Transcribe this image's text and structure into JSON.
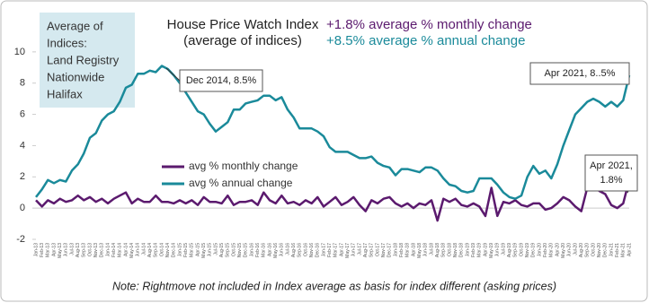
{
  "chart_data": {
    "type": "line",
    "title": "House Price Watch Index",
    "subtitle": "(average of indices)",
    "headlines": [
      {
        "text": "+1.8% average % monthly change",
        "color": "#5b1a6e"
      },
      {
        "text": "+8.5% average % annual change",
        "color": "#1a8a9a"
      }
    ],
    "info_box": [
      "Average of",
      "Indices:",
      "Land Registry",
      "Nationwide",
      "Halifax"
    ],
    "annotations": [
      [
        "Dec 2014, 8.5%"
      ],
      [
        "Apr 2021, 8..5%"
      ],
      [
        "Apr 2021,",
        "1.8%"
      ]
    ],
    "note": "Note: Rightmove not included in Index average as basis for index different (asking prices)",
    "categories": [
      "Jan-13",
      "Feb-13",
      "Mar-13",
      "Apr-13",
      "May-13",
      "Jun-13",
      "Jul-13",
      "Aug-13",
      "Sep-13",
      "Oct-13",
      "Nov-13",
      "Dec-13",
      "Jan-14",
      "Feb-14",
      "Mar-14",
      "Apr-14",
      "May-14",
      "Jun-14",
      "Jul-14",
      "Aug-14",
      "Sep-14",
      "Oct-14",
      "Nov-14",
      "Dec-14",
      "Jan-15",
      "Feb-15",
      "Mar-15",
      "Apr-15",
      "May-15",
      "Jun-15",
      "Jul-15",
      "Aug-15",
      "Sep-15",
      "Oct-15",
      "Nov-15",
      "Dec-15",
      "Jan-16",
      "Feb-16",
      "Mar-16",
      "Apr-16",
      "May-16",
      "Jun-16",
      "Jul-16",
      "Aug-16",
      "Sep-16",
      "Oct-16",
      "Nov-16",
      "Dec-16",
      "Jan-17",
      "Feb-17",
      "Mar-17",
      "Apr-17",
      "May-17",
      "Jun-17",
      "Jul-17",
      "Aug-17",
      "Sep-17",
      "Oct-17",
      "Nov-17",
      "Dec-17",
      "Jan-18",
      "Feb-18",
      "Mar-18",
      "Apr-18",
      "May-18",
      "Jun-18",
      "Jul-18",
      "Aug-18",
      "Sep-18",
      "Oct-18",
      "Nov-18",
      "Dec-18",
      "Jan-19",
      "Feb-19",
      "Mar-19",
      "Apr-19",
      "May-19",
      "Jun-19",
      "Jul-19",
      "Aug-19",
      "Sep-19",
      "Oct-19",
      "Nov-19",
      "Dec-19",
      "Jan-20",
      "Feb-20",
      "Mar-20",
      "Apr-20",
      "May-20",
      "Jun-20",
      "Jul-20",
      "Aug-20",
      "Sep-20",
      "Oct-20",
      "Nov-20",
      "Dec-20",
      "Jan-21",
      "Feb-21",
      "Mar-21",
      "Apr-21"
    ],
    "series": [
      {
        "name": "avg % monthly change",
        "color": "#5b1a6e",
        "values": [
          0.5,
          0.1,
          0.5,
          0.3,
          0.6,
          0.4,
          0.5,
          0.8,
          0.5,
          0.7,
          0.4,
          0.6,
          0.3,
          0.6,
          0.8,
          1.0,
          0.3,
          0.6,
          0.4,
          0.4,
          0.8,
          0.4,
          0.4,
          0.3,
          0.5,
          0.3,
          0.5,
          0.2,
          0.7,
          0.4,
          0.4,
          0.3,
          0.8,
          0.2,
          0.4,
          0.4,
          0.5,
          0.2,
          1.0,
          0.5,
          0.3,
          0.8,
          0.3,
          0.4,
          0.2,
          0.5,
          0.3,
          0.7,
          0.1,
          0.4,
          0.7,
          0.2,
          0.4,
          0.7,
          0.2,
          -0.2,
          0.5,
          0.3,
          0.6,
          0.7,
          0.3,
          0.1,
          0.3,
          0.0,
          0.3,
          0.2,
          0.5,
          -0.8,
          0.6,
          0.4,
          0.6,
          0.2,
          0.1,
          0.3,
          0.1,
          -0.5,
          1.3,
          -0.5,
          0.4,
          0.3,
          0.5,
          0.2,
          0.1,
          0.3,
          0.3,
          -0.1,
          0.0,
          0.3,
          0.7,
          0.5,
          0.1,
          -0.2,
          1.3,
          1.5,
          1.1,
          0.9,
          0.2,
          0.0,
          0.3,
          1.8
        ]
      },
      {
        "name": "avg % annual change",
        "color": "#1a8a9a",
        "values": [
          0.7,
          1.2,
          1.8,
          1.6,
          1.8,
          1.7,
          2.4,
          2.8,
          3.5,
          4.5,
          4.8,
          5.6,
          6.0,
          6.2,
          6.8,
          7.7,
          7.9,
          8.6,
          8.6,
          8.8,
          8.7,
          9.1,
          8.9,
          8.5,
          8.0,
          7.4,
          6.8,
          6.2,
          6.0,
          5.4,
          4.9,
          5.2,
          5.5,
          6.3,
          6.3,
          6.7,
          6.8,
          6.9,
          7.2,
          7.2,
          6.9,
          7.1,
          6.3,
          5.8,
          5.1,
          5.1,
          5.1,
          4.9,
          4.6,
          3.9,
          3.6,
          3.6,
          3.6,
          3.4,
          3.2,
          3.2,
          3.3,
          2.9,
          2.7,
          2.6,
          2.1,
          2.5,
          2.5,
          2.4,
          2.3,
          2.6,
          2.6,
          2.4,
          1.9,
          1.5,
          1.4,
          1.1,
          1.0,
          1.1,
          1.9,
          1.9,
          1.9,
          1.5,
          1.0,
          0.7,
          0.6,
          0.8,
          2.0,
          2.7,
          2.2,
          2.4,
          1.9,
          2.8,
          4.0,
          5.0,
          6.0,
          6.4,
          6.8,
          7.0,
          6.8,
          6.5,
          6.8,
          6.5,
          6.9,
          8.5
        ]
      }
    ],
    "ylim": [
      -2,
      12
    ],
    "yticks": [
      -2,
      0,
      2,
      4,
      6,
      8,
      10
    ],
    "grid": false
  }
}
